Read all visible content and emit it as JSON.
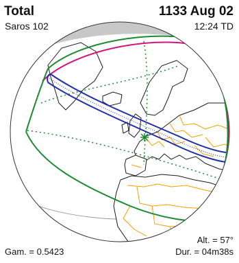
{
  "eclipse": {
    "type": "Total",
    "saros": "Saros 102",
    "date": "1133 Aug 02",
    "time": "12:24 TD",
    "gamma": "Gam. = 0.5423",
    "altitude": "Alt. = 57°",
    "duration": "Dur. = 04m38s"
  },
  "colors": {
    "ocean": "#ffffff",
    "land": "#ffffff",
    "coastline": "#1a1a1a",
    "borders": "#f2a100",
    "night_shade": "#c8c8c8",
    "totality_path": "#1f2fa8",
    "partial_limits": "#1a8a2e",
    "rise_set_curve": "#d4147a",
    "globe_outline": "#333333"
  },
  "map": {
    "projection": "orthographic",
    "greatest_eclipse_marker": "asterisk"
  }
}
